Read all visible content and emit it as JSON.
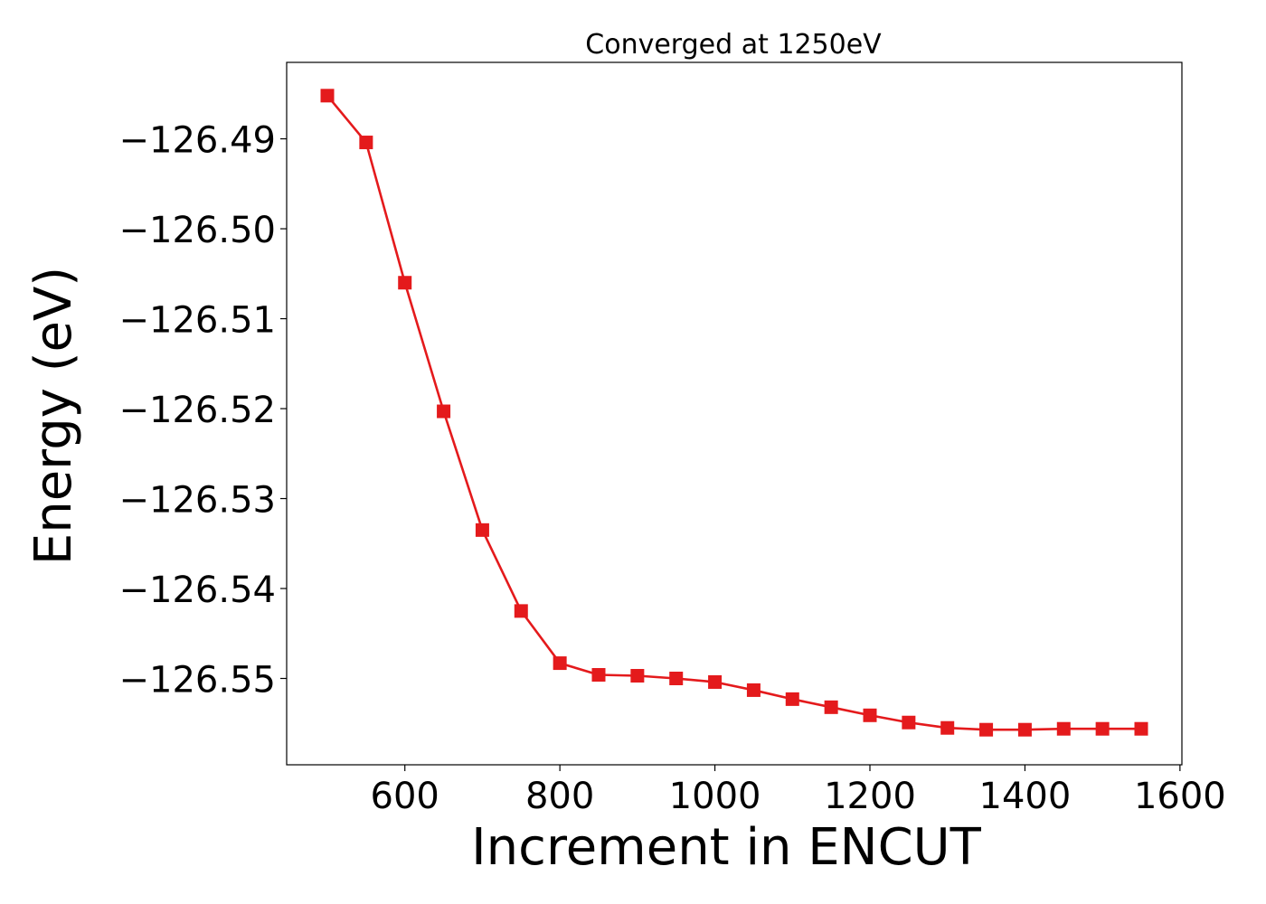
{
  "chart_data": {
    "type": "line",
    "title": "Converged at 1250eV",
    "xlabel": "Increment in ENCUT",
    "ylabel": "Energy (eV)",
    "xlim": [
      447.5,
      1602.5
    ],
    "ylim": [
      -126.5596,
      -126.4815
    ],
    "x_ticks": [
      600,
      800,
      1000,
      1200,
      1400,
      1600
    ],
    "y_ticks": [
      -126.49,
      -126.5,
      -126.51,
      -126.52,
      -126.53,
      -126.54,
      -126.55
    ],
    "y_tick_labels": [
      "−126.49",
      "−126.50",
      "−126.51",
      "−126.52",
      "−126.53",
      "−126.54",
      "−126.55"
    ],
    "grid": false,
    "legend": "none",
    "series": [
      {
        "color": "#e41a1c",
        "marker": "square",
        "x": [
          500,
          550,
          600,
          650,
          700,
          750,
          800,
          850,
          900,
          950,
          1000,
          1050,
          1100,
          1150,
          1200,
          1250,
          1300,
          1350,
          1400,
          1450,
          1500,
          1550
        ],
        "y": [
          -126.4852,
          -126.4904,
          -126.506,
          -126.5203,
          -126.5335,
          -126.5425,
          -126.5483,
          -126.5496,
          -126.5497,
          -126.55,
          -126.5504,
          -126.5513,
          -126.5523,
          -126.5532,
          -126.5541,
          -126.5549,
          -126.5555,
          -126.5557,
          -126.5557,
          -126.5556,
          -126.5556,
          -126.5556
        ]
      }
    ]
  }
}
